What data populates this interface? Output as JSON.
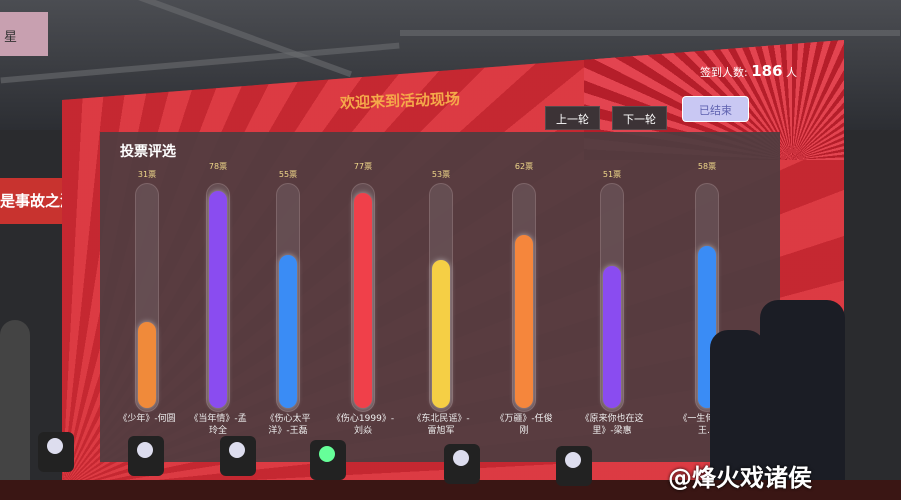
{
  "venue": {
    "left_sign": "星",
    "left_banner": "是事故之源"
  },
  "screen": {
    "title": "欢迎来到活动现场",
    "checkin_label": "签到人数:",
    "checkin_count": "186",
    "checkin_unit": "人",
    "buttons": {
      "prev": "上一轮",
      "next": "下一轮",
      "ended": "已结束"
    },
    "section_title": "投票评选"
  },
  "chart_data": {
    "type": "bar",
    "categories": [
      "《少年》-何圆",
      "《当年情》-孟玲全",
      "《伤心太平洋》-王磊",
      "《伤心1999》-刘焱",
      "《东北民谣》-雷旭军",
      "《万疆》-任俊刚",
      "《原来你也在这里》-梁惠",
      "《一生何…》-王…"
    ],
    "values": [
      31,
      78,
      55,
      77,
      53,
      62,
      51,
      58
    ],
    "vote_labels": [
      "31票",
      "78票",
      "55票",
      "77票",
      "53票",
      "62票",
      "51票",
      "58票"
    ],
    "colors": [
      "#f08a3a",
      "#8a4cf0",
      "#3a8cf5",
      "#f0404a",
      "#f5cf45",
      "#f5863c",
      "#8a4cf0",
      "#3a8cf5"
    ]
  },
  "watermark": "@烽火戏诸侯"
}
